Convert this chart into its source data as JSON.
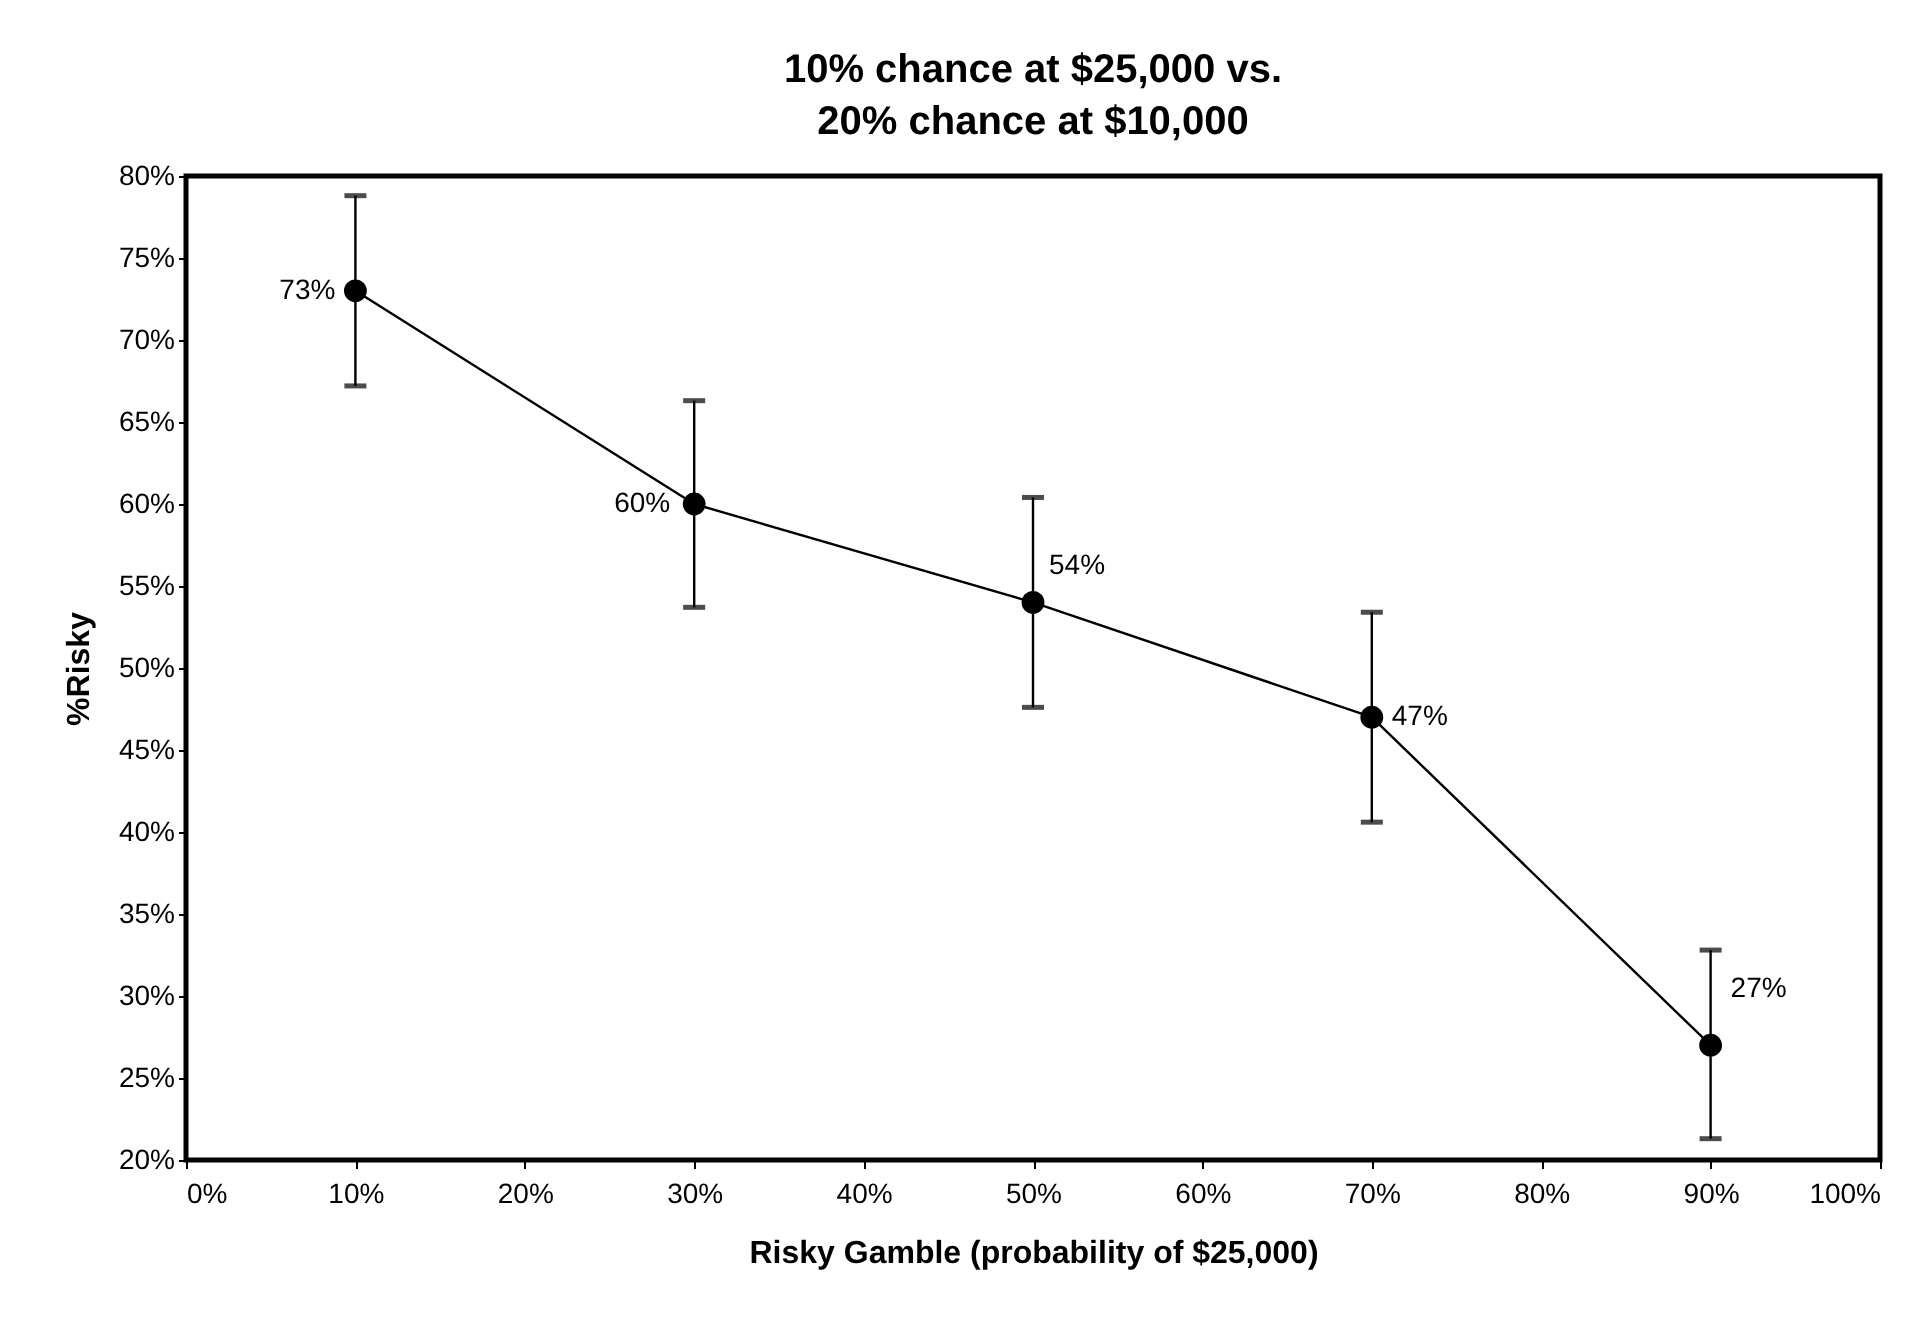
{
  "chart_data": {
    "type": "line",
    "title": "10% chance at $25,000 vs.\n20% chance at $10,000",
    "xlabel": "Risky Gamble (probability of $25,000)",
    "ylabel": "%Risky",
    "x": [
      10,
      30,
      50,
      70,
      90
    ],
    "series": [
      {
        "color": "#000000",
        "values": [
          73,
          60,
          54,
          47,
          27
        ],
        "errors": [
          [
            67.2,
            78.8
          ],
          [
            53.7,
            66.3
          ],
          [
            47.6,
            60.4
          ],
          [
            40.6,
            53.4
          ],
          [
            21.3,
            32.8
          ]
        ],
        "value_labels": [
          "73%",
          "60%",
          "54%",
          "47%",
          "27%"
        ]
      }
    ],
    "xlim": [
      0,
      100
    ],
    "xticks": [
      {
        "value": 0,
        "label": "0%"
      },
      {
        "value": 10,
        "label": "10%"
      },
      {
        "value": 20,
        "label": "20%"
      },
      {
        "value": 30,
        "label": "30%"
      },
      {
        "value": 40,
        "label": "40%"
      },
      {
        "value": 50,
        "label": "50%"
      },
      {
        "value": 60,
        "label": "60%"
      },
      {
        "value": 70,
        "label": "70%"
      },
      {
        "value": 80,
        "label": "80%"
      },
      {
        "value": 90,
        "label": "90%"
      },
      {
        "value": 100,
        "label": "100%"
      }
    ],
    "ylim": [
      20,
      80
    ],
    "yticks": [
      {
        "value": 20,
        "label": "20%"
      },
      {
        "value": 25,
        "label": "25%"
      },
      {
        "value": 30,
        "label": "30%"
      },
      {
        "value": 35,
        "label": "35%"
      },
      {
        "value": 40,
        "label": "40%"
      },
      {
        "value": 45,
        "label": "45%"
      },
      {
        "value": 50,
        "label": "50%"
      },
      {
        "value": 55,
        "label": "55%"
      },
      {
        "value": 60,
        "label": "60%"
      },
      {
        "value": 65,
        "label": "65%"
      },
      {
        "value": 70,
        "label": "70%"
      },
      {
        "value": 75,
        "label": "75%"
      },
      {
        "value": 80,
        "label": "80%"
      }
    ],
    "grid": false,
    "marker": "circle",
    "line_style": "solid"
  }
}
